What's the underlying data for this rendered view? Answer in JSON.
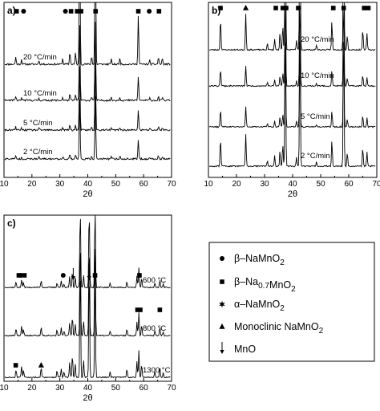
{
  "chart_data": [
    {
      "panel_label": "a)",
      "type": "line",
      "xlabel": "2θ",
      "xlim": [
        10,
        70
      ],
      "xticks": [
        10,
        20,
        30,
        40,
        50,
        60,
        70
      ],
      "series": [
        {
          "name": "20 °C/min"
        },
        {
          "name": "10 °C/min"
        },
        {
          "name": "5 °C/min"
        },
        {
          "name": "2 °C/min"
        }
      ],
      "peaks": [
        14.2,
        16.3,
        22.5,
        31.0,
        33.6,
        35.6,
        37.1,
        41.4,
        42.7,
        48.4,
        51.5,
        58.1,
        62.2,
        65.3,
        66.7
      ],
      "markers": [
        {
          "x": 14.5,
          "shape": "square"
        },
        {
          "x": 17.0,
          "shape": "circle"
        },
        {
          "x": 32.0,
          "shape": "circle"
        },
        {
          "x": 34.0,
          "shape": "square"
        },
        {
          "x": 36.2,
          "shape": "square"
        },
        {
          "x": 37.6,
          "shape": "square"
        },
        {
          "x": 42.8,
          "shape": "square"
        },
        {
          "x": 58.1,
          "shape": "square"
        },
        {
          "x": 62.0,
          "shape": "circle"
        },
        {
          "x": 65.5,
          "shape": "square"
        }
      ]
    },
    {
      "panel_label": "b)",
      "type": "line",
      "xlabel": "2θ",
      "xlim": [
        10,
        70
      ],
      "xticks": [
        10,
        20,
        30,
        40,
        50,
        60,
        70
      ],
      "series": [
        {
          "name": "20 °C/min"
        },
        {
          "name": "10 °C/min"
        },
        {
          "name": "5 °C/min"
        },
        {
          "name": "2 °C/min"
        }
      ],
      "peaks": [
        14.3,
        23.3,
        31.0,
        33.6,
        35.5,
        36.5,
        37.4,
        41.4,
        42.6,
        48.5,
        54.0,
        58.2,
        59.5,
        65.0,
        66.5
      ],
      "markers": [
        {
          "x": 14.3,
          "shape": "square"
        },
        {
          "x": 23.3,
          "shape": "triangle"
        },
        {
          "x": 34.0,
          "shape": "square"
        },
        {
          "x": 36.5,
          "shape": "square"
        },
        {
          "x": 37.7,
          "shape": "square"
        },
        {
          "x": 42.0,
          "shape": "square"
        },
        {
          "x": 54.5,
          "shape": "square"
        },
        {
          "x": 58.2,
          "shape": "square"
        },
        {
          "x": 65.5,
          "shape": "square"
        },
        {
          "x": 67.0,
          "shape": "square"
        }
      ]
    },
    {
      "panel_label": "c)",
      "type": "line",
      "xlabel": "2θ",
      "xlim": [
        10,
        70
      ],
      "xticks": [
        10,
        20,
        30,
        40,
        50,
        60,
        70
      ],
      "series": [
        {
          "name": "600 °C"
        },
        {
          "name": "800 °C"
        },
        {
          "name": "1300 °C"
        }
      ],
      "peaks": [
        14.3,
        16.3,
        17.0,
        23.3,
        29.0,
        30.5,
        31.5,
        33.5,
        34.5,
        35.5,
        37.3,
        38.5,
        40.5,
        42.6,
        48.0,
        54.0,
        57.6,
        58.3,
        59.3,
        64.0,
        65.8,
        67.0
      ],
      "markers": [
        {
          "x": 14.2,
          "shape": "square",
          "series": 2
        },
        {
          "x": 23.3,
          "shape": "triangle",
          "series": 2
        },
        {
          "x": 15.3,
          "shape": "square",
          "series": 0
        },
        {
          "x": 16.0,
          "shape": "circle",
          "series": 0
        },
        {
          "x": 17.3,
          "shape": "square",
          "series": 0
        },
        {
          "x": 31.2,
          "shape": "circle",
          "series": 0
        },
        {
          "x": 34.8,
          "shape": "arrow",
          "series": 0
        },
        {
          "x": 40.5,
          "shape": "arrow",
          "series": 0
        },
        {
          "x": 42.6,
          "shape": "square",
          "series": 0
        },
        {
          "x": 58.5,
          "shape": "square",
          "series": 0
        },
        {
          "x": 57.8,
          "shape": "square",
          "series": 1
        },
        {
          "x": 58.8,
          "shape": "square",
          "series": 1
        },
        {
          "x": 65.8,
          "shape": "square",
          "series": 1
        }
      ]
    }
  ],
  "legend": {
    "items": [
      {
        "symbol": "circle",
        "parts": [
          {
            "t": "β–NaMnO"
          },
          {
            "t": "2",
            "sub": true
          }
        ]
      },
      {
        "symbol": "square",
        "parts": [
          {
            "t": "β–Na"
          },
          {
            "t": "0.7",
            "sub": true
          },
          {
            "t": "MnO"
          },
          {
            "t": "2",
            "sub": true
          }
        ]
      },
      {
        "symbol": "star",
        "parts": [
          {
            "t": "α–NaMnO"
          },
          {
            "t": "2",
            "sub": true
          }
        ]
      },
      {
        "symbol": "triangle",
        "parts": [
          {
            "t": "Monoclinic NaMnO"
          },
          {
            "t": "2",
            "sub": true
          }
        ]
      },
      {
        "symbol": "arrow",
        "parts": [
          {
            "t": "MnO"
          }
        ]
      }
    ]
  }
}
